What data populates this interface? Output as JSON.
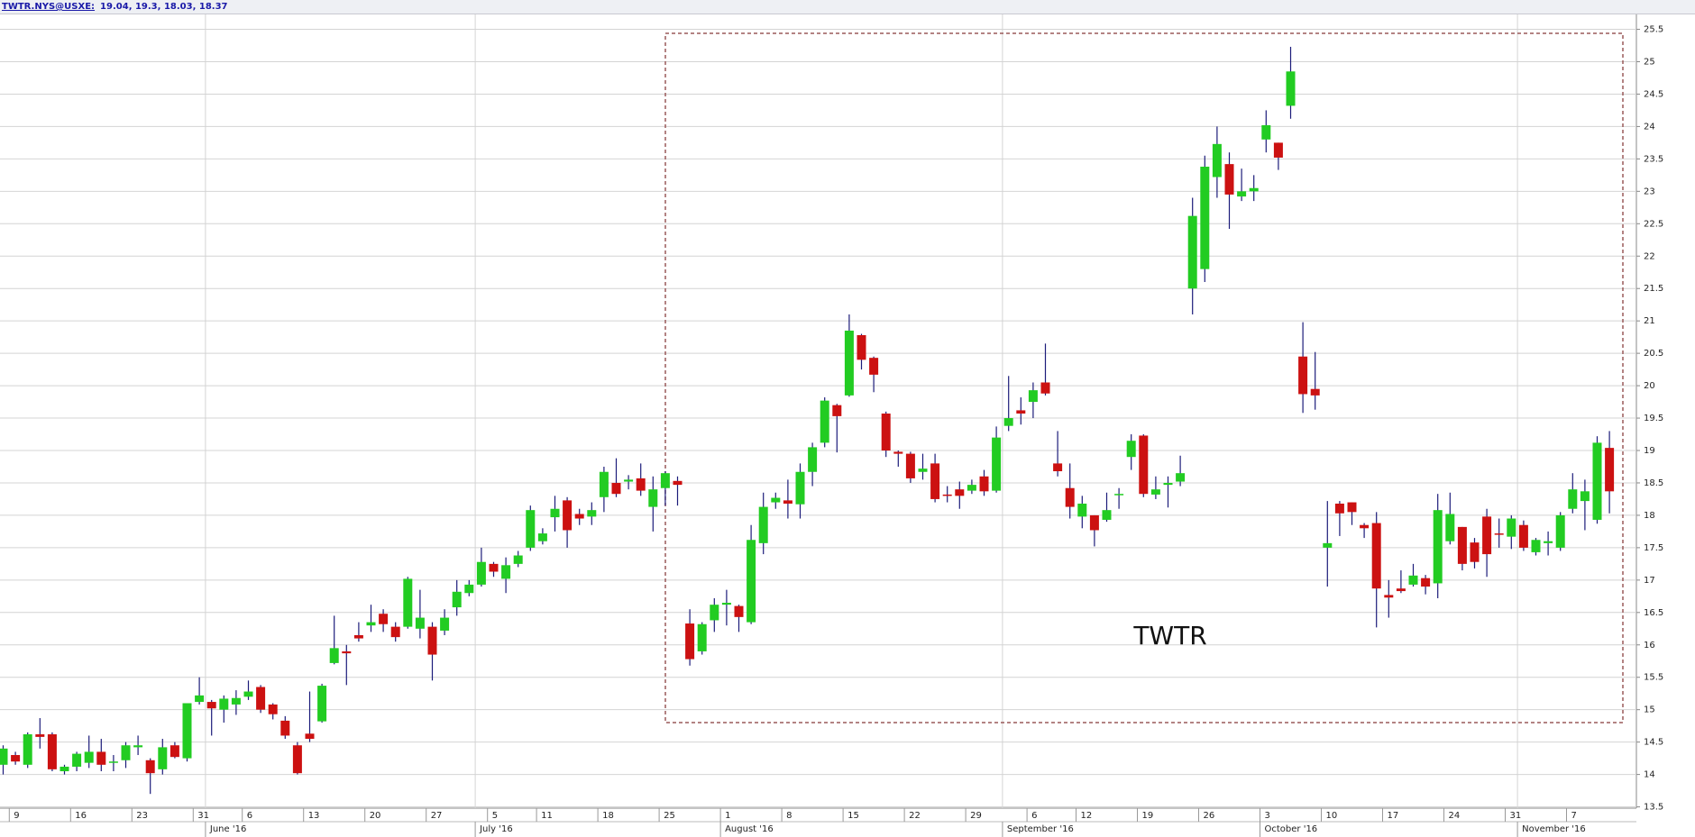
{
  "chart_data": {
    "type": "candlestick",
    "symbol": "TWTR.NYS@USXE:",
    "annotation": "TWTR",
    "categories": [
      null,
      "9",
      null,
      null,
      null,
      null,
      "16",
      null,
      null,
      null,
      null,
      "23",
      null,
      null,
      null,
      null,
      "31",
      null,
      null,
      null,
      "6",
      null,
      null,
      null,
      null,
      "13",
      null,
      null,
      null,
      null,
      "20",
      null,
      null,
      null,
      null,
      "27",
      null,
      null,
      null,
      null,
      "5",
      null,
      null,
      null,
      "11",
      null,
      null,
      null,
      null,
      "18",
      null,
      null,
      null,
      null,
      "25",
      null,
      null,
      null,
      null,
      "1",
      null,
      null,
      null,
      null,
      "8",
      null,
      null,
      null,
      null,
      "15",
      null,
      null,
      null,
      null,
      "22",
      null,
      null,
      null,
      null,
      "29",
      null,
      null,
      null,
      null,
      "6",
      null,
      null,
      null,
      "12",
      null,
      null,
      null,
      null,
      "19",
      null,
      null,
      null,
      null,
      "26",
      null,
      null,
      null,
      null,
      "3",
      null,
      null,
      null,
      null,
      "10",
      null,
      null,
      null,
      null,
      "17",
      null,
      null,
      null,
      null,
      "24",
      null,
      null,
      null,
      null,
      "31",
      null,
      null,
      null,
      null,
      "7",
      null,
      null,
      null
    ],
    "months": [
      null,
      null,
      null,
      null,
      null,
      null,
      null,
      null,
      null,
      null,
      null,
      null,
      null,
      null,
      null,
      null,
      null,
      "June '16",
      null,
      null,
      null,
      null,
      null,
      null,
      null,
      null,
      null,
      null,
      null,
      null,
      null,
      null,
      null,
      null,
      null,
      null,
      null,
      null,
      null,
      "July '16",
      null,
      null,
      null,
      null,
      null,
      null,
      null,
      null,
      null,
      null,
      null,
      null,
      null,
      null,
      null,
      null,
      null,
      null,
      null,
      "August '16",
      null,
      null,
      null,
      null,
      null,
      null,
      null,
      null,
      null,
      null,
      null,
      null,
      null,
      null,
      null,
      null,
      null,
      null,
      null,
      null,
      null,
      null,
      "September '16",
      null,
      null,
      null,
      null,
      null,
      null,
      null,
      null,
      null,
      null,
      null,
      null,
      null,
      null,
      null,
      null,
      null,
      null,
      null,
      null,
      "October '16",
      null,
      null,
      null,
      null,
      null,
      null,
      null,
      null,
      null,
      null,
      null,
      null,
      null,
      null,
      null,
      null,
      null,
      null,
      null,
      null,
      "November '16",
      null,
      null,
      null,
      null,
      null,
      null,
      null
    ],
    "open": [
      14.15,
      14.3,
      14.15,
      14.62,
      14.62,
      14.05,
      14.12,
      14.18,
      14.35,
      14.18,
      14.22,
      14.42,
      14.22,
      14.08,
      14.45,
      14.25,
      15.12,
      15.12,
      15.0,
      15.08,
      15.2,
      15.35,
      15.08,
      14.83,
      14.45,
      14.63,
      14.82,
      15.72,
      15.9,
      16.15,
      16.3,
      16.48,
      16.28,
      16.28,
      16.25,
      16.28,
      16.22,
      16.58,
      16.8,
      16.93,
      17.25,
      17.02,
      17.25,
      17.5,
      17.6,
      17.97,
      18.23,
      18.02,
      17.98,
      18.28,
      18.5,
      18.52,
      18.57,
      18.13,
      18.42,
      18.53,
      16.33,
      15.9,
      16.38,
      16.62,
      16.6,
      16.35,
      17.57,
      18.2,
      18.23,
      18.17,
      18.67,
      19.12,
      19.7,
      19.85,
      20.78,
      20.43,
      19.57,
      18.98,
      18.95,
      18.67,
      18.8,
      18.32,
      18.4,
      18.38,
      18.6,
      18.38,
      19.38,
      19.62,
      19.75,
      20.05,
      18.8,
      18.42,
      17.98,
      18.0,
      17.93,
      18.32,
      18.9,
      19.23,
      18.32,
      18.47,
      18.52,
      21.5,
      21.8,
      23.22,
      23.42,
      22.92,
      23.0,
      23.8,
      23.75,
      24.32,
      20.45,
      19.95,
      17.5,
      18.18,
      18.2,
      17.85,
      17.88,
      16.77,
      16.87,
      16.93,
      17.03,
      16.95,
      17.6,
      17.82,
      17.58,
      17.98,
      17.72,
      17.67,
      17.85,
      17.43,
      17.57,
      17.5,
      18.1,
      18.22,
      17.93,
      19.04
    ],
    "high": [
      14.45,
      14.35,
      14.65,
      14.87,
      14.65,
      14.15,
      14.35,
      14.6,
      14.55,
      14.3,
      14.5,
      14.6,
      14.25,
      14.55,
      14.5,
      15.1,
      15.5,
      15.15,
      15.22,
      15.3,
      15.45,
      15.38,
      15.1,
      14.9,
      14.5,
      15.28,
      15.4,
      16.45,
      16.0,
      16.35,
      16.62,
      16.55,
      16.35,
      17.05,
      16.85,
      16.35,
      16.55,
      17.0,
      17.0,
      17.5,
      17.28,
      17.35,
      17.45,
      18.15,
      17.8,
      18.3,
      18.28,
      18.1,
      18.2,
      18.75,
      18.88,
      18.62,
      18.8,
      18.6,
      18.68,
      18.6,
      16.55,
      16.35,
      16.72,
      16.85,
      16.62,
      17.85,
      18.35,
      18.35,
      18.55,
      18.8,
      19.12,
      19.82,
      19.72,
      21.1,
      20.8,
      20.45,
      19.6,
      19.0,
      18.98,
      18.95,
      18.95,
      18.45,
      18.52,
      18.55,
      18.7,
      19.37,
      20.15,
      19.82,
      20.05,
      20.65,
      19.3,
      18.8,
      18.3,
      18.0,
      18.35,
      18.42,
      19.25,
      19.25,
      18.6,
      18.6,
      18.92,
      22.9,
      23.55,
      24.0,
      23.6,
      23.35,
      23.25,
      24.25,
      23.75,
      25.23,
      20.98,
      20.52,
      18.22,
      18.22,
      18.2,
      17.88,
      18.05,
      17.0,
      17.15,
      17.25,
      17.08,
      18.33,
      18.35,
      17.82,
      17.65,
      18.1,
      17.95,
      18.0,
      17.92,
      17.65,
      17.75,
      18.05,
      18.65,
      18.55,
      19.22,
      19.3
    ],
    "low": [
      14.0,
      14.15,
      14.1,
      14.4,
      14.05,
      14.0,
      14.05,
      14.1,
      14.05,
      14.05,
      14.1,
      14.3,
      13.7,
      14.0,
      14.25,
      14.2,
      15.08,
      14.6,
      14.8,
      14.92,
      15.15,
      14.95,
      14.85,
      14.55,
      14.0,
      14.5,
      14.8,
      15.7,
      15.38,
      16.05,
      16.2,
      16.2,
      16.05,
      16.25,
      16.1,
      15.45,
      16.15,
      16.45,
      16.75,
      16.9,
      17.05,
      16.8,
      17.2,
      17.45,
      17.55,
      17.75,
      17.5,
      17.85,
      17.85,
      18.05,
      18.28,
      18.4,
      18.3,
      17.75,
      18.15,
      18.15,
      15.68,
      15.85,
      16.2,
      16.3,
      16.2,
      16.32,
      17.4,
      18.1,
      17.95,
      17.95,
      18.45,
      19.05,
      18.97,
      19.83,
      20.25,
      19.9,
      18.9,
      18.75,
      18.5,
      18.55,
      18.2,
      18.2,
      18.1,
      18.33,
      18.3,
      18.35,
      19.3,
      19.4,
      19.5,
      19.85,
      18.6,
      17.95,
      17.8,
      17.52,
      17.9,
      18.1,
      18.7,
      18.28,
      18.25,
      18.12,
      18.45,
      21.1,
      21.6,
      22.9,
      22.42,
      22.85,
      22.85,
      23.6,
      23.33,
      24.12,
      19.58,
      19.63,
      16.9,
      17.68,
      17.85,
      17.65,
      16.27,
      16.42,
      16.8,
      16.9,
      16.78,
      16.72,
      17.55,
      17.15,
      17.18,
      17.05,
      17.5,
      17.48,
      17.45,
      17.38,
      17.38,
      17.45,
      18.03,
      17.77,
      17.87,
      18.03
    ],
    "close": [
      14.4,
      14.2,
      14.62,
      14.58,
      14.08,
      14.12,
      14.32,
      14.35,
      14.15,
      14.2,
      14.45,
      14.45,
      14.02,
      14.42,
      14.27,
      15.1,
      15.22,
      15.02,
      15.17,
      15.18,
      15.28,
      15.0,
      14.93,
      14.6,
      14.02,
      14.55,
      15.37,
      15.95,
      15.87,
      16.1,
      16.35,
      16.32,
      16.12,
      17.02,
      16.42,
      15.85,
      16.42,
      16.82,
      16.93,
      17.28,
      17.13,
      17.23,
      17.38,
      18.08,
      17.72,
      18.1,
      17.77,
      17.95,
      18.08,
      18.67,
      18.33,
      18.55,
      18.38,
      18.4,
      18.65,
      18.47,
      15.78,
      16.32,
      16.62,
      16.65,
      16.43,
      17.62,
      18.13,
      18.27,
      18.18,
      18.67,
      19.05,
      19.77,
      19.53,
      20.85,
      20.4,
      20.17,
      19.0,
      18.95,
      18.57,
      18.72,
      18.25,
      18.3,
      18.3,
      18.47,
      18.37,
      19.2,
      19.5,
      19.57,
      19.93,
      19.88,
      18.68,
      18.13,
      18.18,
      17.77,
      18.08,
      18.33,
      19.15,
      18.33,
      18.4,
      18.5,
      18.65,
      22.62,
      23.38,
      23.73,
      22.95,
      23.0,
      23.05,
      24.02,
      23.52,
      24.85,
      19.87,
      19.85,
      17.57,
      18.03,
      18.05,
      17.8,
      16.87,
      16.73,
      16.83,
      17.07,
      16.9,
      18.08,
      18.02,
      17.25,
      17.28,
      17.4,
      17.7,
      17.95,
      17.5,
      17.62,
      17.6,
      18.0,
      18.4,
      18.37,
      19.12,
      18.37
    ],
    "ylim": [
      13.48,
      25.73
    ],
    "yticks": [
      13.5,
      14,
      14.5,
      15,
      15.5,
      16,
      16.5,
      17,
      17.5,
      18,
      18.5,
      19,
      19.5,
      20,
      20.5,
      21,
      21.5,
      22,
      22.5,
      23,
      23.5,
      24,
      24.5,
      25,
      25.5
    ],
    "grid": true,
    "up_color": "#22cc22",
    "down_color": "#cc1111",
    "wick_color": "#1c1c7a"
  }
}
